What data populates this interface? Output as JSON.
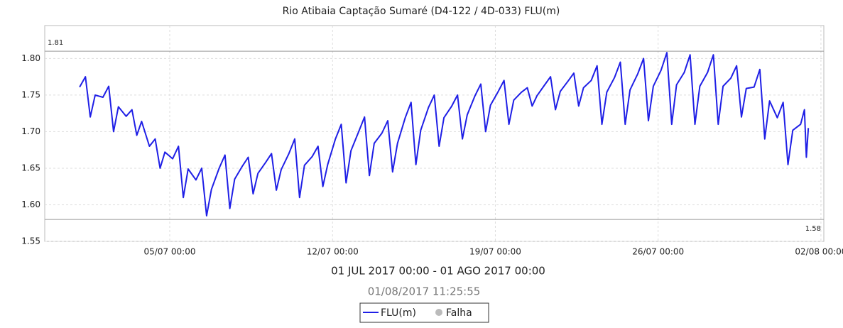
{
  "chart_data": {
    "type": "line",
    "title": "Rio Atibaia Captação Sumaré  (D4-122 / 4D-033) FLU(m)",
    "subtitle": "01 JUL 2017 00:00 - 01 AGO 2017 00:00",
    "timestamp": "01/08/2017 11:25:55",
    "x": [
      "2017-07-01T03:00",
      "2017-07-01T09:00",
      "2017-07-01T14:00",
      "2017-07-01T19:00",
      "2017-07-02T03:00",
      "2017-07-02T09:00",
      "2017-07-02T14:00",
      "2017-07-02T19:00",
      "2017-07-03T03:00",
      "2017-07-03T09:00",
      "2017-07-03T14:00",
      "2017-07-03T19:00",
      "2017-07-04T03:00",
      "2017-07-04T09:00",
      "2017-07-04T14:00",
      "2017-07-04T19:00",
      "2017-07-05T03:00",
      "2017-07-05T09:00",
      "2017-07-05T14:00",
      "2017-07-05T19:00",
      "2017-07-06T03:00",
      "2017-07-06T09:00",
      "2017-07-06T14:00",
      "2017-07-06T19:00",
      "2017-07-07T03:00",
      "2017-07-07T09:00",
      "2017-07-07T14:00",
      "2017-07-07T19:00",
      "2017-07-08T03:00",
      "2017-07-08T09:00",
      "2017-07-08T14:00",
      "2017-07-08T19:00",
      "2017-07-09T03:00",
      "2017-07-09T09:00",
      "2017-07-09T14:00",
      "2017-07-09T19:00",
      "2017-07-10T03:00",
      "2017-07-10T09:00",
      "2017-07-10T14:00",
      "2017-07-10T19:00",
      "2017-07-11T03:00",
      "2017-07-11T09:00",
      "2017-07-11T14:00",
      "2017-07-11T19:00",
      "2017-07-12T03:00",
      "2017-07-12T09:00",
      "2017-07-12T14:00",
      "2017-07-12T19:00",
      "2017-07-13T03:00",
      "2017-07-13T09:00",
      "2017-07-13T14:00",
      "2017-07-13T19:00",
      "2017-07-14T03:00",
      "2017-07-14T09:00",
      "2017-07-14T14:00",
      "2017-07-14T19:00",
      "2017-07-15T03:00",
      "2017-07-15T09:00",
      "2017-07-15T14:00",
      "2017-07-15T19:00",
      "2017-07-16T03:00",
      "2017-07-16T09:00",
      "2017-07-16T14:00",
      "2017-07-16T19:00",
      "2017-07-17T03:00",
      "2017-07-17T09:00",
      "2017-07-17T14:00",
      "2017-07-17T19:00",
      "2017-07-18T03:00",
      "2017-07-18T09:00",
      "2017-07-18T14:00",
      "2017-07-18T19:00",
      "2017-07-19T03:00",
      "2017-07-19T09:00",
      "2017-07-19T14:00",
      "2017-07-19T19:00",
      "2017-07-20T03:00",
      "2017-07-20T09:00",
      "2017-07-20T14:00",
      "2017-07-20T19:00",
      "2017-07-21T03:00",
      "2017-07-21T09:00",
      "2017-07-21T14:00",
      "2017-07-21T19:00",
      "2017-07-22T03:00",
      "2017-07-22T09:00",
      "2017-07-22T14:00",
      "2017-07-22T19:00",
      "2017-07-23T03:00",
      "2017-07-23T09:00",
      "2017-07-23T14:00",
      "2017-07-23T19:00",
      "2017-07-24T03:00",
      "2017-07-24T09:00",
      "2017-07-24T14:00",
      "2017-07-24T19:00",
      "2017-07-25T03:00",
      "2017-07-25T09:00",
      "2017-07-25T14:00",
      "2017-07-25T19:00",
      "2017-07-26T03:00",
      "2017-07-26T09:00",
      "2017-07-26T14:00",
      "2017-07-26T19:00",
      "2017-07-27T03:00",
      "2017-07-27T09:00",
      "2017-07-27T14:00",
      "2017-07-27T19:00",
      "2017-07-28T03:00",
      "2017-07-28T09:00",
      "2017-07-28T14:00",
      "2017-07-28T19:00",
      "2017-07-29T03:00",
      "2017-07-29T09:00",
      "2017-07-29T14:00",
      "2017-07-29T19:00",
      "2017-07-30T03:00",
      "2017-07-30T09:00",
      "2017-07-30T14:00",
      "2017-07-30T19:00",
      "2017-07-31T03:00",
      "2017-07-31T09:00",
      "2017-07-31T14:00",
      "2017-07-31T19:00",
      "2017-08-01T03:00",
      "2017-08-01T07:00",
      "2017-08-01T09:00",
      "2017-08-01T11:00"
    ],
    "series": [
      {
        "name": "FLU(m)",
        "color": "#1f1fe6",
        "values": [
          1.761,
          1.775,
          1.72,
          1.75,
          1.747,
          1.762,
          1.7,
          1.734,
          1.721,
          1.73,
          1.695,
          1.714,
          1.68,
          1.69,
          1.65,
          1.672,
          1.663,
          1.68,
          1.61,
          1.649,
          1.634,
          1.65,
          1.585,
          1.621,
          1.65,
          1.668,
          1.595,
          1.635,
          1.653,
          1.665,
          1.615,
          1.643,
          1.658,
          1.67,
          1.62,
          1.648,
          1.67,
          1.69,
          1.61,
          1.654,
          1.666,
          1.68,
          1.625,
          1.655,
          1.69,
          1.71,
          1.63,
          1.674,
          1.7,
          1.72,
          1.64,
          1.684,
          1.698,
          1.715,
          1.645,
          1.684,
          1.719,
          1.74,
          1.655,
          1.702,
          1.733,
          1.75,
          1.68,
          1.719,
          1.735,
          1.75,
          1.69,
          1.723,
          1.749,
          1.765,
          1.7,
          1.736,
          1.755,
          1.77,
          1.71,
          1.743,
          1.754,
          1.76,
          1.735,
          1.749,
          1.764,
          1.775,
          1.73,
          1.755,
          1.769,
          1.78,
          1.735,
          1.76,
          1.77,
          1.79,
          1.71,
          1.754,
          1.774,
          1.795,
          1.71,
          1.757,
          1.779,
          1.8,
          1.715,
          1.762,
          1.784,
          1.808,
          1.71,
          1.764,
          1.781,
          1.805,
          1.71,
          1.762,
          1.781,
          1.805,
          1.71,
          1.762,
          1.773,
          1.79,
          1.72,
          1.759,
          1.761,
          1.785,
          1.69,
          1.742,
          1.719,
          1.74,
          1.655,
          1.702,
          1.71,
          1.73,
          1.665,
          1.705
        ]
      }
    ],
    "failure_marker": {
      "name": "Falha",
      "color": "#bbbbbb"
    },
    "xlim": [
      "2017-06-29T15:00",
      "2017-08-02T03:00"
    ],
    "xticks": [
      {
        "value": "2017-07-05T00:00",
        "label": "05/07 00:00"
      },
      {
        "value": "2017-07-12T00:00",
        "label": "12/07 00:00"
      },
      {
        "value": "2017-07-19T00:00",
        "label": "19/07 00:00"
      },
      {
        "value": "2017-07-26T00:00",
        "label": "26/07 00:00"
      },
      {
        "value": "2017-08-02T00:00",
        "label": "02/08 00:00"
      }
    ],
    "ylim": [
      1.55,
      1.845
    ],
    "yticks": [
      1.55,
      {
        "value": 1.6,
        "label": "1.60"
      },
      1.65,
      {
        "value": 1.7,
        "label": "1.70"
      },
      1.75,
      {
        "value": 1.8,
        "label": "1.80"
      }
    ],
    "max_line": 1.81,
    "min_line": 1.58,
    "grid": true
  }
}
